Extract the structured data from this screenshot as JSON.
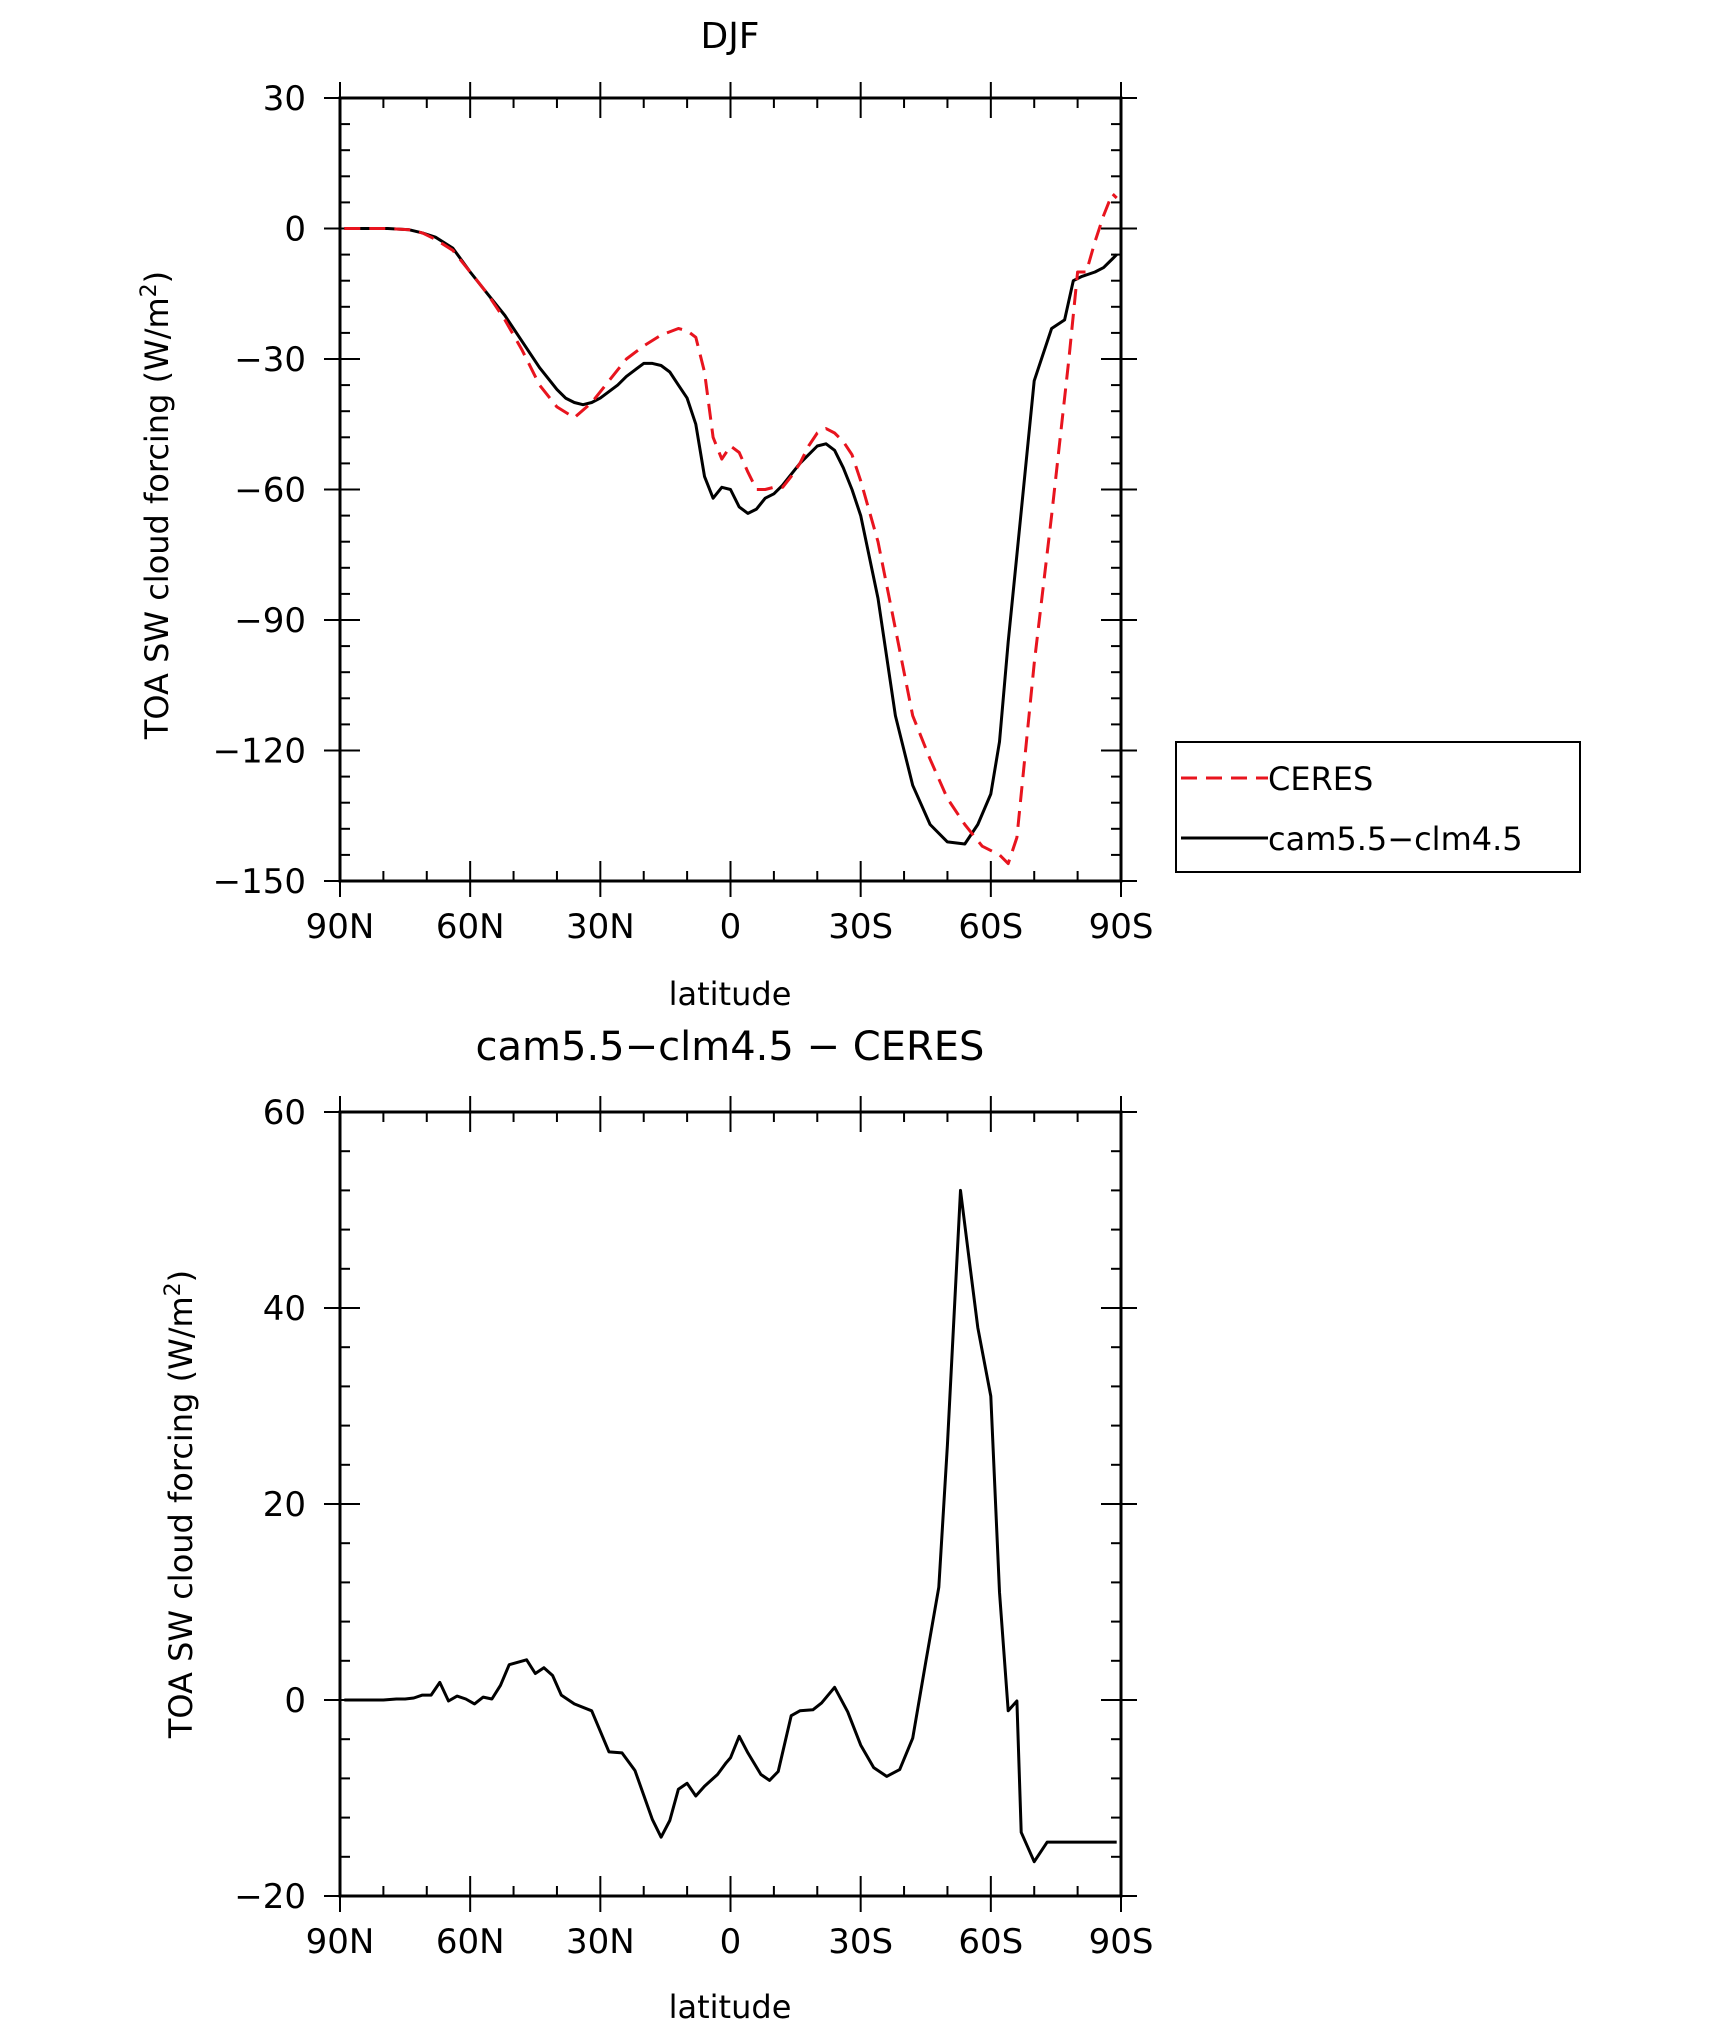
{
  "colors": {
    "ceres": "#e8141e",
    "model": "#000000",
    "background": "#ffffff"
  },
  "chart_data": [
    {
      "type": "line",
      "title": "DJF",
      "xlabel": "latitude",
      "ylabel": "TOA SW cloud forcing (W/m²)",
      "ylabel_base": "TOA SW cloud forcing (W/m",
      "ylabel_sup": "2",
      "ylabel_tail": ")",
      "xlim": [
        90,
        -90
      ],
      "ylim": [
        -150,
        30
      ],
      "x_ticks": [
        {
          "value": 90,
          "label": "90N"
        },
        {
          "value": 60,
          "label": "60N"
        },
        {
          "value": 30,
          "label": "30N"
        },
        {
          "value": 0,
          "label": "0"
        },
        {
          "value": -30,
          "label": "30S"
        },
        {
          "value": -60,
          "label": "60S"
        },
        {
          "value": -90,
          "label": "90S"
        }
      ],
      "y_ticks": [
        30,
        0,
        -30,
        -60,
        -90,
        -120,
        -150
      ],
      "y_tick_labels": [
        "30",
        "0",
        "−30",
        "−60",
        "−90",
        "−120",
        "−150"
      ],
      "legend": {
        "placement": "right"
      },
      "series": [
        {
          "name": "CERES",
          "style": "dashed",
          "color": "#e8141e",
          "x": [
            89,
            84,
            79,
            74,
            71,
            68,
            64,
            60,
            56,
            52,
            48,
            44,
            40,
            36,
            32,
            28,
            24,
            20,
            16,
            12,
            10,
            8,
            6,
            4,
            2,
            0,
            -2,
            -4,
            -6,
            -8,
            -10,
            -12,
            -14,
            -16,
            -18,
            -20,
            -22,
            -24,
            -26,
            -28,
            -30,
            -34,
            -38,
            -42,
            -46,
            -50,
            -54,
            -58,
            -62,
            -64,
            -66,
            -70,
            -74,
            -78,
            -80,
            -82,
            -84,
            -86,
            -88,
            -89
          ],
          "y": [
            0,
            0,
            0,
            -0.3,
            -1,
            -2.5,
            -5,
            -10,
            -15,
            -21,
            -28,
            -36,
            -41,
            -43.5,
            -40,
            -35,
            -30,
            -27,
            -24.5,
            -23,
            -23.5,
            -25,
            -33,
            -48,
            -53,
            -50,
            -51.5,
            -56,
            -60,
            -60,
            -59.5,
            -59.5,
            -57,
            -54,
            -50,
            -47,
            -46,
            -47,
            -49,
            -52,
            -58,
            -72,
            -92,
            -112,
            -122,
            -131,
            -137,
            -142,
            -144,
            -146,
            -140,
            -100,
            -66,
            -30,
            -10,
            -10,
            -3,
            3,
            8,
            7
          ]
        },
        {
          "name": "cam5.5−clm4.5",
          "style": "solid",
          "color": "#000000",
          "x": [
            89,
            84,
            79,
            74,
            71,
            68,
            64,
            60,
            56,
            52,
            48,
            44,
            40,
            38,
            36,
            34,
            32,
            30,
            28,
            26,
            24,
            22,
            20,
            18,
            16,
            14,
            12,
            10,
            8,
            6,
            4,
            2,
            0,
            -2,
            -4,
            -6,
            -8,
            -10,
            -12,
            -14,
            -16,
            -18,
            -20,
            -22,
            -24,
            -26,
            -28,
            -30,
            -34,
            -38,
            -42,
            -46,
            -50,
            -54,
            -57,
            -60,
            -62,
            -64,
            -66,
            -70,
            -74,
            -77,
            -79,
            -81,
            -84,
            -86,
            -88,
            -89
          ],
          "y": [
            0,
            0,
            0,
            -0.3,
            -1,
            -2,
            -4.5,
            -10,
            -15,
            -20,
            -26,
            -32,
            -37,
            -39,
            -40,
            -40.5,
            -40,
            -39,
            -37.5,
            -36,
            -34,
            -32.5,
            -31,
            -31,
            -31.5,
            -33,
            -36,
            -39,
            -45,
            -57,
            -62,
            -59.5,
            -60,
            -64,
            -65.5,
            -64.5,
            -62,
            -61,
            -59,
            -56.5,
            -54,
            -52,
            -50,
            -49.5,
            -51,
            -55,
            -60,
            -66,
            -85,
            -112,
            -128,
            -137,
            -141,
            -141.5,
            -137,
            -130,
            -118,
            -95,
            -75,
            -35,
            -23,
            -21,
            -12,
            -11,
            -10,
            -9,
            -7,
            -6
          ]
        }
      ]
    },
    {
      "type": "line",
      "title": "cam5.5−clm4.5 − CERES",
      "xlabel": "latitude",
      "ylabel": "TOA SW cloud forcing (W/m²)",
      "ylabel_base": "TOA SW cloud forcing (W/m",
      "ylabel_sup": "2",
      "ylabel_tail": ")",
      "xlim": [
        90,
        -90
      ],
      "ylim": [
        -20,
        60
      ],
      "x_ticks": [
        {
          "value": 90,
          "label": "90N"
        },
        {
          "value": 60,
          "label": "60N"
        },
        {
          "value": 30,
          "label": "30N"
        },
        {
          "value": 0,
          "label": "0"
        },
        {
          "value": -30,
          "label": "30S"
        },
        {
          "value": -60,
          "label": "60S"
        },
        {
          "value": -90,
          "label": "90S"
        }
      ],
      "y_ticks": [
        60,
        40,
        20,
        0,
        -20
      ],
      "y_tick_labels": [
        "60",
        "40",
        "20",
        "0",
        "−20"
      ],
      "series": [
        {
          "name": "cam5.5−clm4.5 − CERES",
          "style": "solid",
          "color": "#000000",
          "x": [
            89,
            85,
            80,
            77,
            75,
            73,
            71,
            69,
            67,
            65,
            63,
            61,
            59,
            57,
            55,
            53,
            51,
            47,
            45,
            43,
            41,
            39,
            36,
            32,
            28,
            25,
            22,
            20,
            18,
            16,
            14,
            12,
            10,
            8,
            6,
            3,
            1,
            0,
            -2,
            -4,
            -7,
            -9,
            -11,
            -14,
            -16,
            -19,
            -21,
            -24,
            -27,
            -30,
            -33,
            -36,
            -39,
            -42,
            -45,
            -48,
            -50,
            -53,
            -55,
            -57,
            -60,
            -62,
            -64,
            -66,
            -67,
            -70,
            -73,
            -75,
            -77,
            -79,
            -80,
            -82,
            -84,
            -86,
            -88,
            -89
          ],
          "y": [
            0,
            0,
            0,
            0.1,
            0.1,
            0.2,
            0.5,
            0.5,
            1.8,
            -0.1,
            0.4,
            0.1,
            -0.4,
            0.3,
            0.1,
            1.5,
            3.6,
            4.1,
            2.7,
            3.3,
            2.5,
            0.5,
            -0.4,
            -1.1,
            -5.3,
            -5.4,
            -7.2,
            -9.7,
            -12.2,
            -14,
            -12.3,
            -9.1,
            -8.5,
            -9.8,
            -8.8,
            -7.6,
            -6.4,
            -5.9,
            -3.7,
            -5.4,
            -7.6,
            -8.2,
            -7.3,
            -1.6,
            -1.1,
            -1,
            -0.3,
            1.3,
            -1.2,
            -4.6,
            -6.9,
            -7.8,
            -7.1,
            -3.9,
            3.9,
            11.5,
            26,
            52,
            45,
            38,
            31,
            11,
            -1.1,
            -0.1,
            -13.5,
            -16.5,
            -14.5,
            -14.5,
            -14.5,
            -14.5,
            -14.5,
            -14.5,
            -14.5,
            -14.5,
            -14.5,
            -14.5
          ]
        }
      ]
    }
  ]
}
